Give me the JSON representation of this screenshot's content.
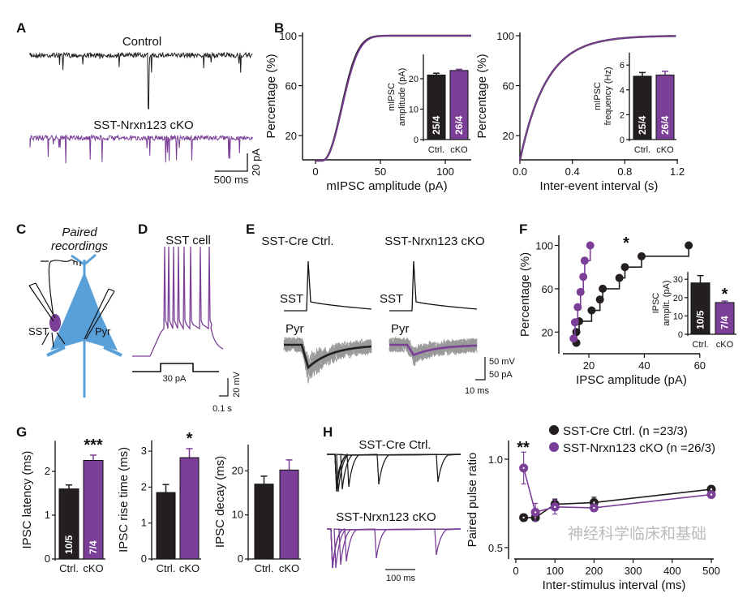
{
  "colors": {
    "ctrl": "#231f20",
    "cko": "#7b3f98",
    "pyr": "#5aa0d8",
    "gray": "#999999"
  },
  "panel_labels": [
    "A",
    "B",
    "C",
    "D",
    "E",
    "F",
    "G",
    "H"
  ],
  "panelA": {
    "control_label": "Control",
    "cko_label": "SST-Nrxn123 cKO",
    "scale_time": "500 ms",
    "scale_amp": "20 pA"
  },
  "panelC": {
    "title_line1": "Paired",
    "title_line2": "recordings",
    "sst_label": "SST",
    "pyr_label": "Pyr"
  },
  "panelD": {
    "title": "SST cell",
    "step_label": "30 pA",
    "scale_v": "20 mV",
    "scale_t": "0.1 s"
  },
  "panelE": {
    "ctrl_title": "SST-Cre Ctrl.",
    "cko_title": "SST-Nrxn123 cKO",
    "sst_label": "SST",
    "pyr_label": "Pyr",
    "scale_v": "50 mV",
    "scale_i": "50 pA",
    "scale_t": "10 ms"
  },
  "panelH": {
    "ctrl_trace_label": "SST-Cre Ctrl.",
    "cko_trace_label": "SST-Nrxn123 cKO",
    "scale_t": "100 ms"
  },
  "watermark": "神经科学临床和基础",
  "chart_data": [
    {
      "id": "B1",
      "type": "line",
      "title": "",
      "xlabel": "mIPSC amplitude (pA)",
      "ylabel": "Percentage (%)",
      "xlim": [
        0,
        120
      ],
      "ylim": [
        0,
        100
      ],
      "xticks": [
        "0",
        "50",
        "100"
      ],
      "yticks": [
        "20",
        "60",
        "100"
      ],
      "series": [
        {
          "name": "Ctrl.",
          "distribution": "cumulative",
          "median_pA": 22
        },
        {
          "name": "cKO",
          "distribution": "cumulative",
          "median_pA": 22.5
        }
      ],
      "inset": {
        "type": "bar",
        "ylabel_line1": "mIPSC",
        "ylabel_line2": "amplitude (pA)",
        "categories": [
          "Ctrl.",
          "cKO"
        ],
        "values": [
          21.2,
          22.7
        ],
        "errors": [
          0.6,
          0.4
        ],
        "n_labels": [
          "25/4",
          "26/4"
        ],
        "ylim": [
          0,
          28
        ],
        "yticks": [
          "0",
          "10",
          "20"
        ]
      }
    },
    {
      "id": "B2",
      "type": "line",
      "title": "",
      "xlabel": "Inter-event interval (s)",
      "ylabel": "Percentage (%)",
      "xlim": [
        0,
        1.2
      ],
      "ylim": [
        0,
        100
      ],
      "xticks": [
        "0.0",
        "0.4",
        "0.8",
        "1.2"
      ],
      "yticks": [
        "20",
        "60",
        "100"
      ],
      "series": [
        {
          "name": "Ctrl.",
          "distribution": "cumulative",
          "tau_s": 0.2
        },
        {
          "name": "cKO",
          "distribution": "cumulative",
          "tau_s": 0.2
        }
      ],
      "inset": {
        "type": "bar",
        "ylabel_line1": "mIPSC",
        "ylabel_line2": "frequency (Hz)",
        "categories": [
          "Ctrl.",
          "cKO"
        ],
        "values": [
          5.1,
          5.2
        ],
        "errors": [
          0.3,
          0.3
        ],
        "n_labels": [
          "25/4",
          "26/4"
        ],
        "ylim": [
          0,
          7
        ],
        "yticks": [
          "0",
          "2",
          "4",
          "6"
        ]
      }
    },
    {
      "id": "F",
      "type": "scatter",
      "xlabel": "IPSC amplitude (pA)",
      "ylabel": "Percentage (%)",
      "xlim": [
        10.6,
        60
      ],
      "ylim": [
        0,
        100
      ],
      "xticks": [
        "20",
        "40",
        "60"
      ],
      "yticks": [
        "20",
        "60",
        "100"
      ],
      "annotation": "*",
      "series": [
        {
          "name": "Ctrl.",
          "x": [
            15.5,
            15.5,
            16.5,
            21,
            24,
            25,
            31,
            33,
            39,
            56
          ],
          "y": [
            10,
            20,
            30,
            40,
            50,
            60,
            70,
            80,
            90,
            100
          ]
        },
        {
          "name": "cKO",
          "x": [
            14.5,
            15,
            16,
            17,
            18,
            18.5,
            20.5
          ],
          "y": [
            14,
            29,
            43,
            57,
            71,
            86,
            100
          ]
        }
      ],
      "inset": {
        "type": "bar",
        "ylabel_line1": "IPSC",
        "ylabel_line2": "amplit. (pA)",
        "categories": [
          "Ctrl.",
          "cKO"
        ],
        "values": [
          28,
          17.3
        ],
        "errors": [
          4,
          0.8
        ],
        "n_labels": [
          "10/5",
          "7/4"
        ],
        "ylim": [
          0,
          34
        ],
        "yticks": [
          "0",
          "10",
          "20",
          "30"
        ],
        "annotation": "*"
      }
    },
    {
      "id": "G1",
      "type": "bar",
      "ylabel": "IPSC latency (ms)",
      "categories": [
        "Ctrl.",
        "cKO"
      ],
      "values": [
        1.6,
        2.25
      ],
      "errors": [
        0.09,
        0.12
      ],
      "n_labels": [
        "10/5",
        "7/4"
      ],
      "ylim": [
        0,
        2.7
      ],
      "yticks": [
        "0",
        "1",
        "2"
      ],
      "annotation": "***"
    },
    {
      "id": "G2",
      "type": "bar",
      "ylabel": "IPSC rise time (ms)",
      "categories": [
        "Ctrl.",
        "cKO"
      ],
      "values": [
        1.85,
        2.82
      ],
      "errors": [
        0.22,
        0.25
      ],
      "ylim": [
        0,
        3.3
      ],
      "yticks": [
        "0",
        "1",
        "2",
        "3"
      ],
      "annotation": "*"
    },
    {
      "id": "G3",
      "type": "bar",
      "ylabel": "IPSC decay (ms)",
      "categories": [
        "Ctrl.",
        "cKO"
      ],
      "values": [
        17,
        20.2
      ],
      "errors": [
        1.8,
        2.3
      ],
      "ylim": [
        0,
        26
      ],
      "yticks": [
        "0",
        "10",
        "20"
      ]
    },
    {
      "id": "H",
      "type": "line",
      "xlabel": "Inter-stimulus interval (ms)",
      "ylabel": "Paired pulse ratio",
      "xlim": [
        0,
        500
      ],
      "ylim": [
        0.5,
        1.1
      ],
      "xticks": [
        "0",
        "100",
        "200",
        "300",
        "400",
        "500"
      ],
      "yticks": [
        "0.5",
        "1.0"
      ],
      "annotation": "**",
      "series": [
        {
          "name": "SST-Cre Ctrl. (n =23/3)",
          "x": [
            20,
            50,
            100,
            200,
            500
          ],
          "y": [
            0.67,
            0.67,
            0.745,
            0.755,
            0.83
          ],
          "errors": [
            0.02,
            0.02,
            0.03,
            0.03,
            0.02
          ]
        },
        {
          "name": "SST-Nrxn123 cKO (n =26/3)",
          "x": [
            20,
            50,
            100,
            200,
            500
          ],
          "y": [
            0.95,
            0.7,
            0.73,
            0.725,
            0.8
          ],
          "errors": [
            0.09,
            0.05,
            0.04,
            0.02,
            0.01
          ]
        }
      ]
    }
  ]
}
